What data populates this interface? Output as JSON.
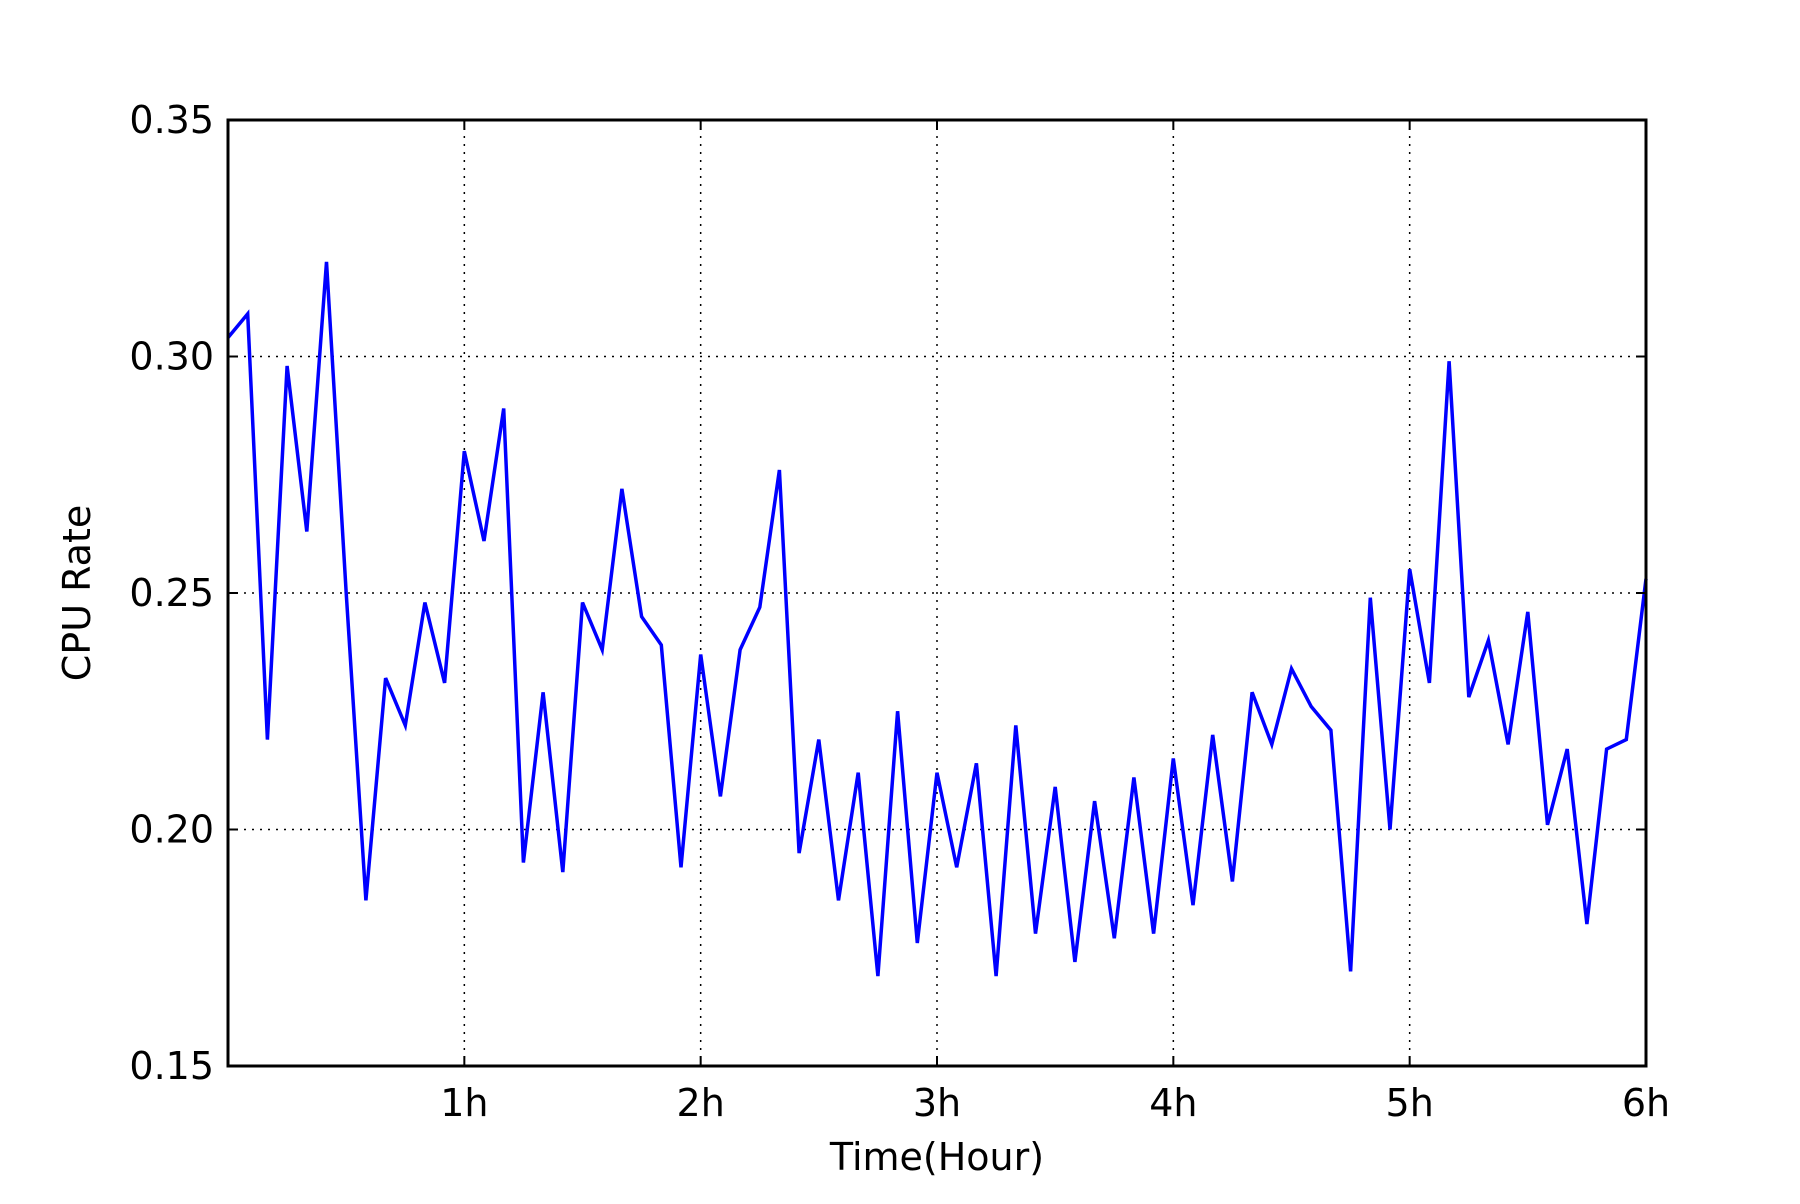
{
  "chart_data": {
    "type": "line",
    "title": "",
    "xlabel": "Time(Hour)",
    "ylabel": "CPU Rate",
    "xlim": [
      0,
      6
    ],
    "ylim": [
      0.15,
      0.35
    ],
    "x_ticks": [
      {
        "value": 1,
        "label": "1h"
      },
      {
        "value": 2,
        "label": "2h"
      },
      {
        "value": 3,
        "label": "3h"
      },
      {
        "value": 4,
        "label": "4h"
      },
      {
        "value": 5,
        "label": "5h"
      },
      {
        "value": 6,
        "label": "6h"
      }
    ],
    "y_ticks": [
      {
        "value": 0.15,
        "label": "0.15"
      },
      {
        "value": 0.2,
        "label": "0.20"
      },
      {
        "value": 0.25,
        "label": "0.25"
      },
      {
        "value": 0.3,
        "label": "0.30"
      },
      {
        "value": 0.35,
        "label": "0.35"
      }
    ],
    "grid": true,
    "series": [
      {
        "color": "#0000ff",
        "x": [
          0.0,
          0.0833,
          0.1667,
          0.25,
          0.3333,
          0.4167,
          0.5,
          0.5833,
          0.6667,
          0.75,
          0.8333,
          0.9167,
          1.0,
          1.0833,
          1.1667,
          1.25,
          1.3333,
          1.4167,
          1.5,
          1.5833,
          1.6667,
          1.75,
          1.8333,
          1.9167,
          2.0,
          2.0833,
          2.1667,
          2.25,
          2.3333,
          2.4167,
          2.5,
          2.5833,
          2.6667,
          2.75,
          2.8333,
          2.9167,
          3.0,
          3.0833,
          3.1667,
          3.25,
          3.3333,
          3.4167,
          3.5,
          3.5833,
          3.6667,
          3.75,
          3.8333,
          3.9167,
          4.0,
          4.0833,
          4.1667,
          4.25,
          4.3333,
          4.4167,
          4.5,
          4.5833,
          4.6667,
          4.75,
          4.8333,
          4.9167,
          5.0,
          5.0833,
          5.1667,
          5.25,
          5.3333,
          5.4167,
          5.5,
          5.5833,
          5.6667,
          5.75,
          5.8333,
          5.9167,
          6.0
        ],
        "y": [
          0.304,
          0.309,
          0.219,
          0.298,
          0.263,
          0.32,
          0.25,
          0.185,
          0.232,
          0.222,
          0.248,
          0.231,
          0.28,
          0.261,
          0.289,
          0.193,
          0.229,
          0.191,
          0.248,
          0.238,
          0.272,
          0.245,
          0.239,
          0.192,
          0.237,
          0.207,
          0.238,
          0.247,
          0.276,
          0.195,
          0.219,
          0.185,
          0.212,
          0.169,
          0.225,
          0.176,
          0.212,
          0.192,
          0.214,
          0.169,
          0.222,
          0.178,
          0.209,
          0.172,
          0.206,
          0.177,
          0.211,
          0.178,
          0.215,
          0.184,
          0.22,
          0.189,
          0.229,
          0.218,
          0.234,
          0.226,
          0.221,
          0.17,
          0.249,
          0.2,
          0.255,
          0.231,
          0.299,
          0.228,
          0.24,
          0.218,
          0.246,
          0.201,
          0.217,
          0.18,
          0.217,
          0.219,
          0.253
        ]
      }
    ]
  }
}
